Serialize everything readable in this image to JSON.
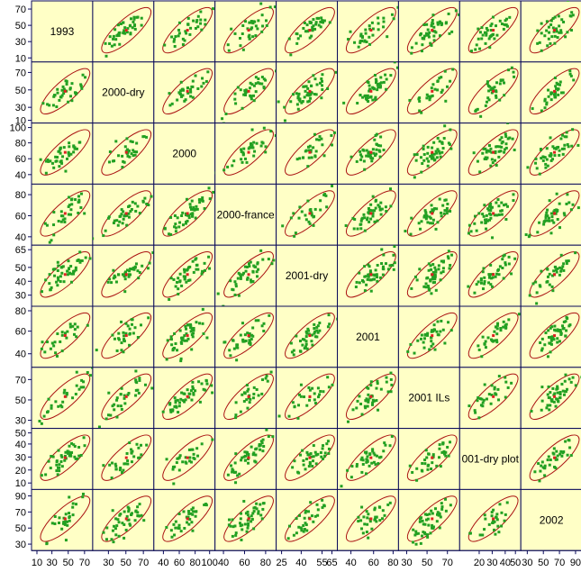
{
  "chart_data": {
    "type": "scatter",
    "variables": [
      "1993",
      "2000-dry",
      "2000",
      "2000-france",
      "2001-dry",
      "2001",
      "2001 ILs",
      "001-dry plot",
      "2002"
    ],
    "x_tick_labels": [
      [
        "10",
        "30",
        "50",
        "70"
      ],
      [
        "30",
        "50",
        "70"
      ],
      [
        "40",
        "60",
        "80",
        "100"
      ],
      [
        "40",
        "60",
        "80"
      ],
      [
        "25",
        "40",
        "55",
        "65"
      ],
      [
        "40",
        "60",
        "80"
      ],
      [
        "30",
        "50",
        "70"
      ],
      [
        "20",
        "30",
        "40",
        "50"
      ],
      [
        "30",
        "50",
        "70",
        "90"
      ]
    ],
    "y_tick_labels": [
      [
        "70",
        "50",
        "30",
        "10"
      ],
      [
        "70",
        "50",
        "30",
        "10"
      ],
      [
        "100",
        "80",
        "60",
        "40"
      ],
      [
        "80",
        "60",
        "40"
      ],
      [
        "65",
        "50",
        "40",
        "30"
      ],
      [
        "80",
        "60",
        "40"
      ],
      [
        "70",
        "50",
        "30"
      ],
      [
        "50",
        "40",
        "30",
        "20",
        "10"
      ],
      [
        "90",
        "70",
        "50",
        "30"
      ]
    ],
    "ranges": [
      [
        5,
        80
      ],
      [
        12,
        82
      ],
      [
        28,
        105
      ],
      [
        32,
        90
      ],
      [
        22,
        66
      ],
      [
        28,
        82
      ],
      [
        22,
        82
      ],
      [
        5,
        52
      ],
      [
        22,
        98
      ]
    ],
    "point_color": "#22a022",
    "highlight_color": "#dd2222",
    "ellipse_color": "#aa1111",
    "panel_background": "#ffffc6"
  }
}
